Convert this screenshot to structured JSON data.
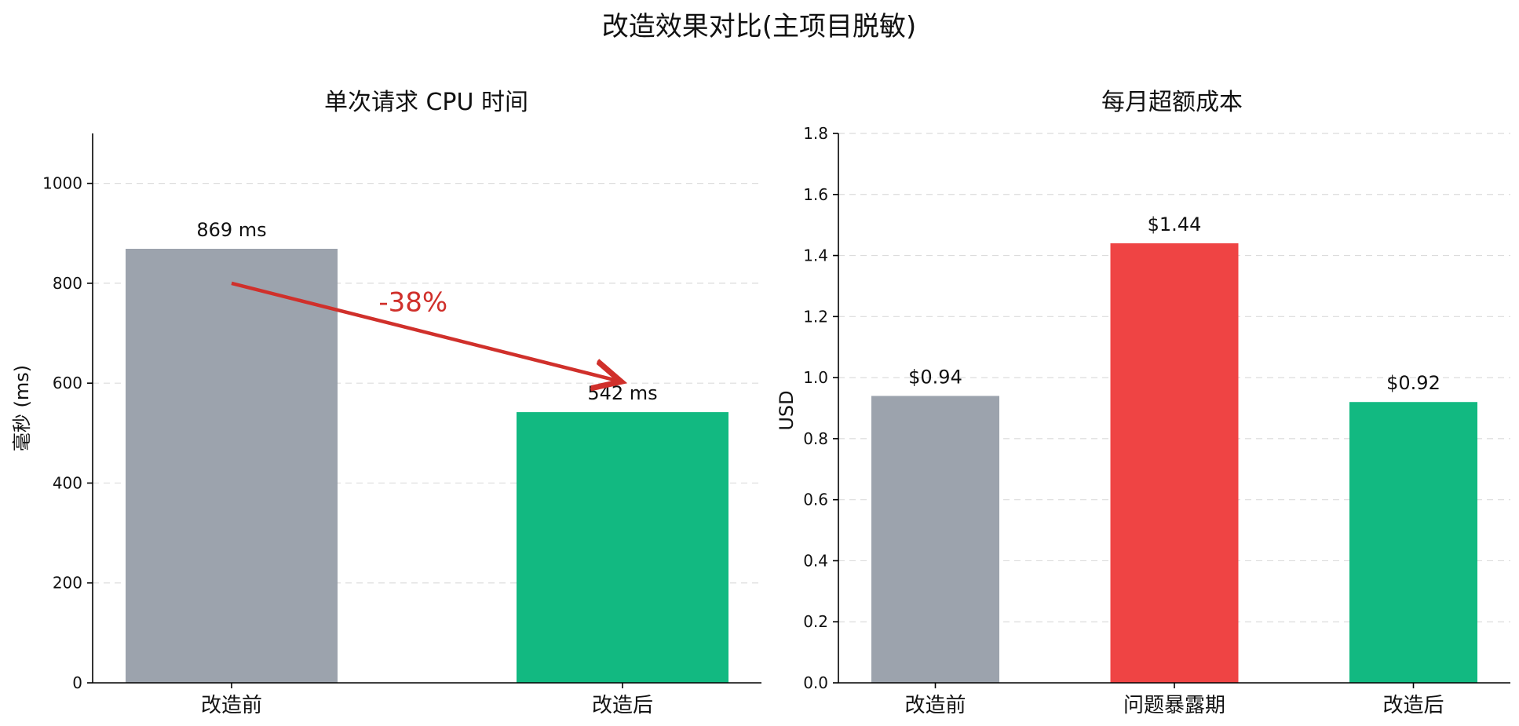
{
  "figure_title": "改造效果对比(主项目脱敏)",
  "colors": {
    "before": "#9ca3ad",
    "problem": "#ef4444",
    "after": "#12b981",
    "annotation": "#d0302b"
  },
  "chart_data": [
    {
      "type": "bar",
      "title": "单次请求 CPU 时间",
      "xlabel": "",
      "ylabel": "毫秒 (ms)",
      "categories": [
        "改造前",
        "改造后"
      ],
      "values": [
        869,
        542
      ],
      "data_labels": [
        "869 ms",
        "542 ms"
      ],
      "bar_colors": [
        "#9ca3ad",
        "#12b981"
      ],
      "ylim": [
        0,
        1100
      ],
      "yticks": [
        0,
        200,
        400,
        600,
        800,
        1000
      ],
      "ytick_labels": [
        "0",
        "200",
        "400",
        "600",
        "800",
        "1000"
      ],
      "grid": true,
      "annotation": {
        "text": "-38%",
        "arrow_from": {
          "category": "改造前",
          "y": 800
        },
        "arrow_to": {
          "category": "改造后",
          "y": 600
        }
      }
    },
    {
      "type": "bar",
      "title": "每月超额成本",
      "xlabel": "",
      "ylabel": "USD",
      "categories": [
        "改造前",
        "问题暴露期",
        "改造后"
      ],
      "values": [
        0.94,
        1.44,
        0.92
      ],
      "data_labels": [
        "$0.94",
        "$1.44",
        "$0.92"
      ],
      "bar_colors": [
        "#9ca3ad",
        "#ef4444",
        "#12b981"
      ],
      "ylim": [
        0,
        1.8
      ],
      "yticks": [
        0,
        0.2,
        0.4,
        0.6,
        0.8,
        1.0,
        1.2,
        1.4,
        1.6,
        1.8
      ],
      "ytick_labels": [
        "0.0",
        "0.2",
        "0.4",
        "0.6",
        "0.8",
        "1.0",
        "1.2",
        "1.4",
        "1.6",
        "1.8"
      ],
      "grid": true
    }
  ]
}
